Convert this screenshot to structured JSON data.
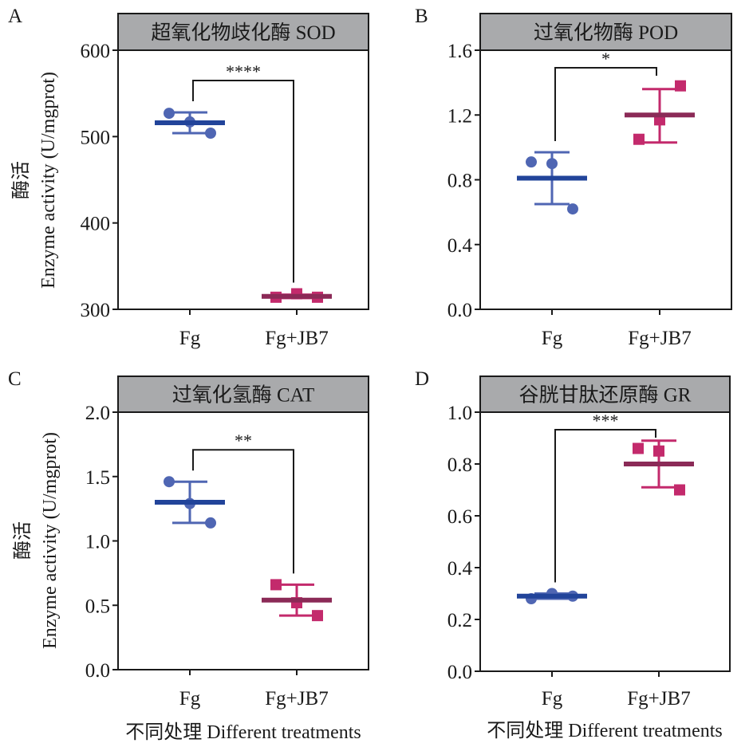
{
  "figure": {
    "y_axis_label_cn": "酶活",
    "y_axis_label_en": "Enzyme activity (U/mgprot)",
    "x_axis_label": "不同处理 Different treatments"
  },
  "colors": {
    "fg_mean": "#22449a",
    "fg_point": "#4f66b3",
    "jb7_mean": "#8b2a57",
    "jb7_point": "#c32a6c",
    "header_fill": "#a9aaac",
    "axis": "#1a1a1a"
  },
  "chart_data": [
    {
      "type": "scatter",
      "panel": "A",
      "title": "超氧化物歧化酶 SOD",
      "categories": [
        "Fg",
        "Fg+JB7"
      ],
      "ylim": [
        300,
        600
      ],
      "yticks": [
        "300",
        "400",
        "500",
        "600"
      ],
      "ytick_values": [
        300,
        400,
        500,
        600
      ],
      "ylabel": "酶活 Enzyme activity (U/mgprot)",
      "xlabel": "",
      "significance": "****",
      "series": [
        {
          "name": "Fg",
          "marker": "circle",
          "points": [
            527,
            517,
            504
          ],
          "mean": 516,
          "error": [
            504,
            528
          ]
        },
        {
          "name": "Fg+JB7",
          "marker": "square",
          "points": [
            314,
            318,
            314
          ],
          "mean": 315,
          "error": [
            313,
            317
          ]
        }
      ]
    },
    {
      "type": "scatter",
      "panel": "B",
      "title": "过氧化物酶 POD",
      "categories": [
        "Fg",
        "Fg+JB7"
      ],
      "ylim": [
        0.0,
        1.6
      ],
      "yticks": [
        "0.0",
        "0.4",
        "0.8",
        "1.2",
        "1.6"
      ],
      "ytick_values": [
        0.0,
        0.4,
        0.8,
        1.2,
        1.6
      ],
      "ylabel": "",
      "xlabel": "",
      "significance": "*",
      "series": [
        {
          "name": "Fg",
          "marker": "circle",
          "points": [
            0.9,
            0.62,
            0.91
          ],
          "mean": 0.81,
          "error": [
            0.65,
            0.97
          ]
        },
        {
          "name": "Fg+JB7",
          "marker": "square",
          "points": [
            1.38,
            1.17,
            1.05
          ],
          "mean": 1.2,
          "error": [
            1.03,
            1.36
          ]
        }
      ]
    },
    {
      "type": "scatter",
      "panel": "C",
      "title": "过氧化氢酶 CAT",
      "categories": [
        "Fg",
        "Fg+JB7"
      ],
      "ylim": [
        0.0,
        2.0
      ],
      "yticks": [
        "0.0",
        "0.5",
        "1.0",
        "1.5",
        "2.0"
      ],
      "ytick_values": [
        0.0,
        0.5,
        1.0,
        1.5,
        2.0
      ],
      "ylabel": "酶活 Enzyme activity (U/mgprot)",
      "xlabel": "不同处理 Different treatments",
      "significance": "**",
      "series": [
        {
          "name": "Fg",
          "marker": "circle",
          "points": [
            1.46,
            1.29,
            1.14
          ],
          "mean": 1.3,
          "error": [
            1.14,
            1.46
          ]
        },
        {
          "name": "Fg+JB7",
          "marker": "square",
          "points": [
            0.66,
            0.52,
            0.42
          ],
          "mean": 0.54,
          "error": [
            0.42,
            0.66
          ]
        }
      ]
    },
    {
      "type": "scatter",
      "panel": "D",
      "title": "谷胱甘肽还原酶 GR",
      "categories": [
        "Fg",
        "Fg+JB7"
      ],
      "ylim": [
        0.0,
        1.0
      ],
      "yticks": [
        "0.0",
        "0.2",
        "0.4",
        "0.6",
        "0.8",
        "1.0"
      ],
      "ytick_values": [
        0.0,
        0.2,
        0.4,
        0.6,
        0.8,
        1.0
      ],
      "ylabel": "",
      "xlabel": "不同处理 Different treatments",
      "significance": "***",
      "series": [
        {
          "name": "Fg",
          "marker": "circle",
          "points": [
            0.28,
            0.3,
            0.29
          ],
          "mean": 0.29,
          "error": [
            0.28,
            0.3
          ]
        },
        {
          "name": "Fg+JB7",
          "marker": "square",
          "points": [
            0.85,
            0.86,
            0.7
          ],
          "mean": 0.8,
          "error": [
            0.71,
            0.89
          ]
        }
      ]
    }
  ]
}
